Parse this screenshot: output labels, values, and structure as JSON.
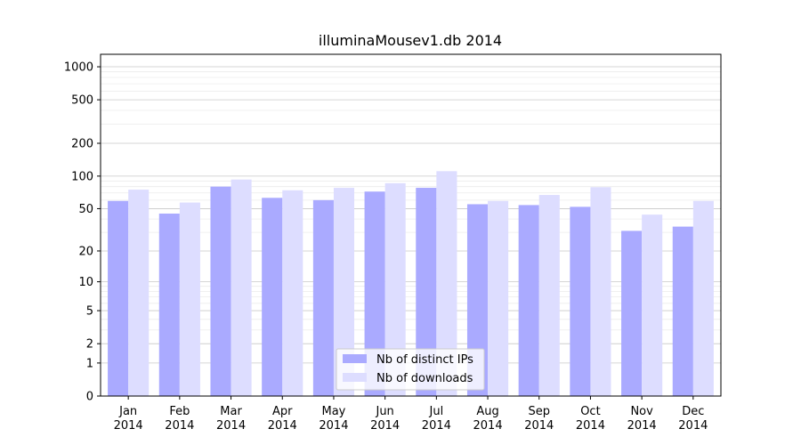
{
  "chart_data": {
    "type": "bar",
    "title": "illuminaMousev1.db 2014",
    "xlabel": "",
    "ylabel": "",
    "categories": [
      "Jan\n2014",
      "Feb\n2014",
      "Mar\n2014",
      "Apr\n2014",
      "May\n2014",
      "Jun\n2014",
      "Jul\n2014",
      "Aug\n2014",
      "Sep\n2014",
      "Oct\n2014",
      "Nov\n2014",
      "Dec\n2014"
    ],
    "series": [
      {
        "name": "Nb of distinct IPs",
        "color": "#aaaaff",
        "values": [
          59,
          45,
          80,
          63,
          60,
          72,
          78,
          55,
          54,
          52,
          31,
          34
        ]
      },
      {
        "name": "Nb of downloads",
        "color": "#ddddff",
        "values": [
          75,
          57,
          93,
          74,
          78,
          86,
          111,
          59,
          67,
          79,
          44,
          59
        ]
      }
    ],
    "y_scale": "symlog",
    "ylim": [
      0,
      1300
    ],
    "y_ticks": [
      0,
      1,
      2,
      5,
      10,
      20,
      50,
      100,
      200,
      500,
      1000
    ],
    "y_tick_labels": [
      "0",
      "1",
      "2",
      "5",
      "10",
      "20",
      "50",
      "100",
      "200",
      "500",
      "1000"
    ],
    "grid": "horizontal",
    "legend_position": "bottom-center"
  }
}
